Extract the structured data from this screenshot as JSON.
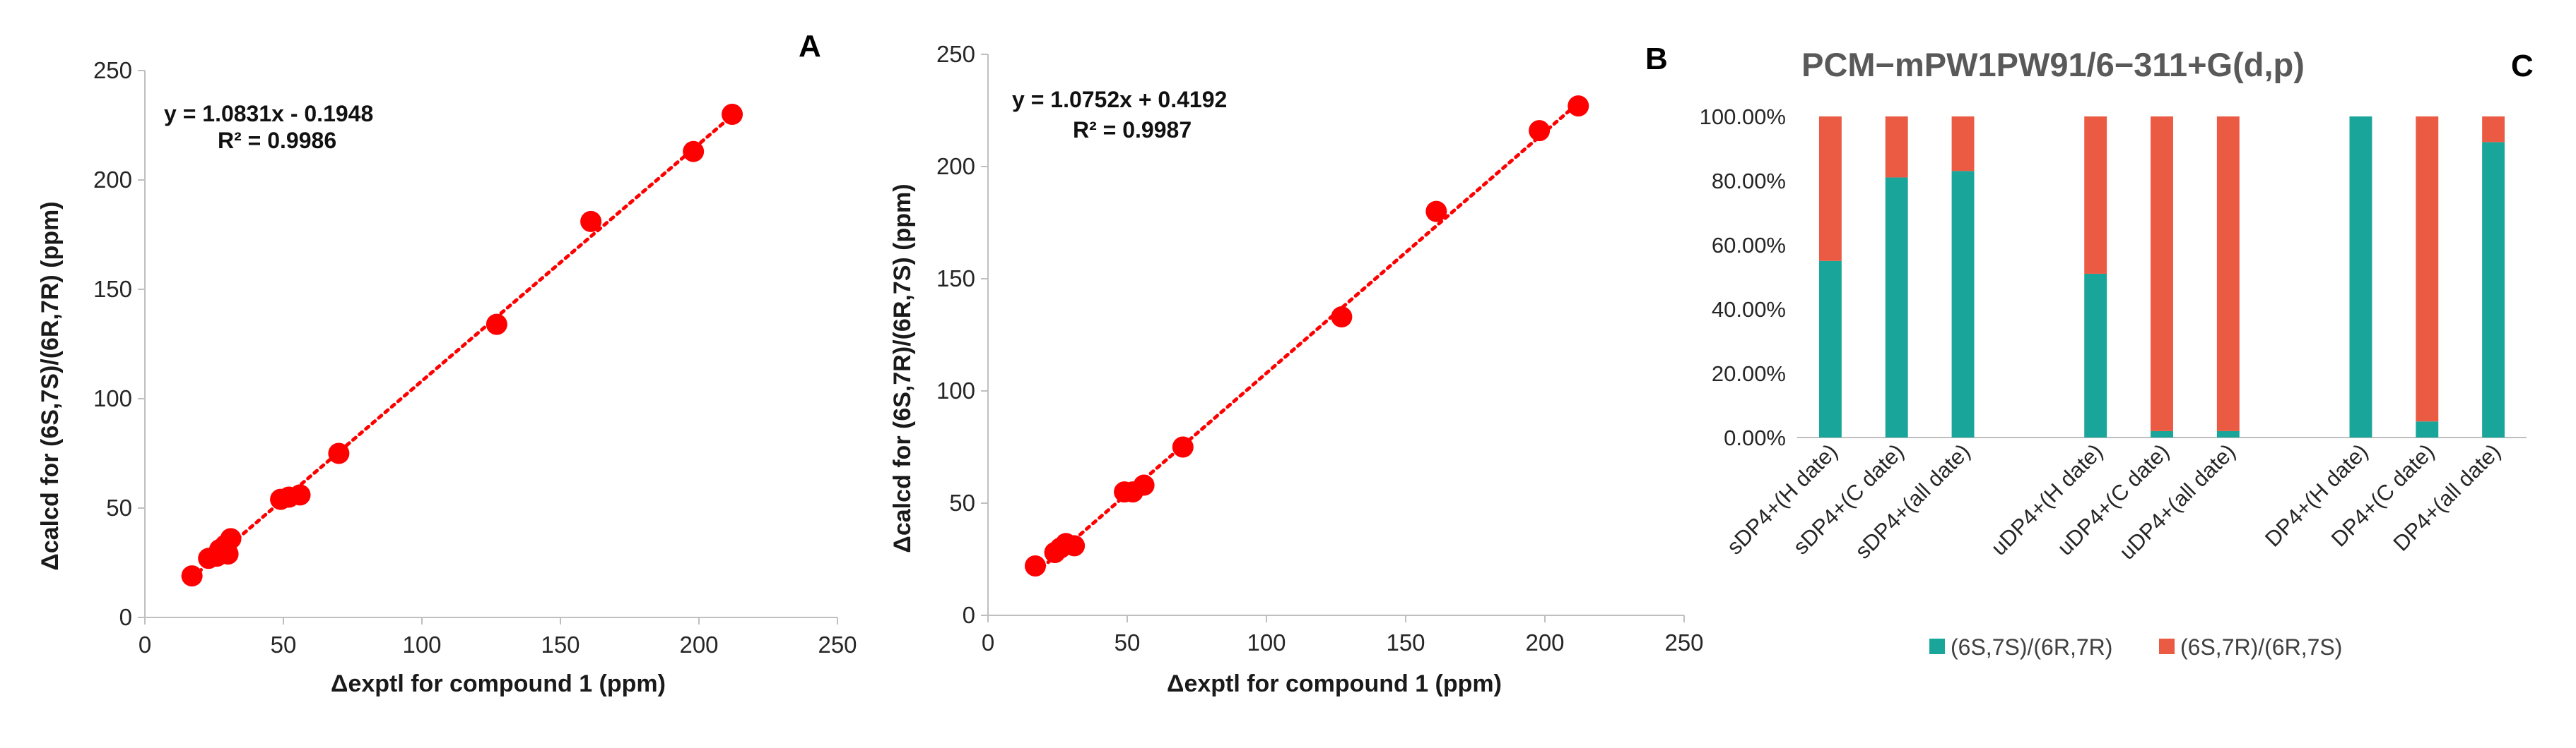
{
  "panels": {
    "A": {
      "letter": "A",
      "equation": "y = 1.0831x - 0.1948",
      "r2": "R² = 0.9986",
      "xlabel": "Δexptl for compound 1 (ppm)",
      "ylabel": "Δcalcd for (6S,7S)/(6R,7R) (ppm)"
    },
    "B": {
      "letter": "B",
      "equation": "y = 1.0752x + 0.4192",
      "r2": "R² = 0.9987",
      "xlabel": "Δexptl for compound 1 (ppm)",
      "ylabel": "Δcalcd for (6S,7R)/(6R,7S)  (ppm)"
    },
    "C": {
      "letter": "C",
      "title": "PCM−mPW1PW91/6−311+G(d,p)",
      "legend": [
        "(6S,7S)/(6R,7R)",
        "(6S,7R)/(6R,7S)"
      ]
    }
  },
  "colors": {
    "scatter": "#ff0000",
    "teal": "#1aa59a",
    "orange": "#eb5b44",
    "axis": "#bfbfbf"
  },
  "chart_data": [
    {
      "type": "scatter",
      "title": "",
      "xlabel": "Δexptl for compound 1 (ppm)",
      "ylabel": "Δcalcd for (6S,7S)/(6R,7R) (ppm)",
      "xlim": [
        0,
        250
      ],
      "ylim": [
        0,
        250
      ],
      "xticks": [
        "0",
        "50",
        "100",
        "150",
        "200",
        "250"
      ],
      "yticks": [
        "0",
        "50",
        "100",
        "150",
        "200",
        "250"
      ],
      "trendline": {
        "slope": 1.0831,
        "intercept": -0.1948,
        "style": "dotted",
        "x_range": [
          17,
          212
        ]
      },
      "points": [
        {
          "x": 17,
          "y": 19
        },
        {
          "x": 23,
          "y": 27
        },
        {
          "x": 26,
          "y": 28
        },
        {
          "x": 27,
          "y": 31
        },
        {
          "x": 29,
          "y": 33
        },
        {
          "x": 30,
          "y": 29
        },
        {
          "x": 31,
          "y": 36
        },
        {
          "x": 49,
          "y": 54
        },
        {
          "x": 52,
          "y": 55
        },
        {
          "x": 56,
          "y": 56
        },
        {
          "x": 70,
          "y": 75
        },
        {
          "x": 127,
          "y": 134
        },
        {
          "x": 161,
          "y": 181
        },
        {
          "x": 198,
          "y": 213
        },
        {
          "x": 212,
          "y": 230
        }
      ]
    },
    {
      "type": "scatter",
      "title": "",
      "xlabel": "Δexptl for compound 1 (ppm)",
      "ylabel": "Δcalcd for (6S,7R)/(6R,7S)  (ppm)",
      "xlim": [
        0,
        250
      ],
      "ylim": [
        0,
        250
      ],
      "xticks": [
        "0",
        "50",
        "100",
        "150",
        "200",
        "250"
      ],
      "yticks": [
        "0",
        "50",
        "100",
        "150",
        "200",
        "250"
      ],
      "trendline": {
        "slope": 1.0752,
        "intercept": 0.4192,
        "style": "dotted",
        "x_range": [
          17,
          212
        ]
      },
      "points": [
        {
          "x": 17,
          "y": 22
        },
        {
          "x": 24,
          "y": 28
        },
        {
          "x": 26,
          "y": 30
        },
        {
          "x": 28,
          "y": 32
        },
        {
          "x": 31,
          "y": 31
        },
        {
          "x": 49,
          "y": 55
        },
        {
          "x": 52,
          "y": 55
        },
        {
          "x": 56,
          "y": 58
        },
        {
          "x": 70,
          "y": 75
        },
        {
          "x": 127,
          "y": 133
        },
        {
          "x": 161,
          "y": 180
        },
        {
          "x": 198,
          "y": 216
        },
        {
          "x": 212,
          "y": 227
        }
      ]
    },
    {
      "type": "bar",
      "stacked": true,
      "title": "PCM−mPW1PW91/6−311+G(d,p)",
      "ylim": [
        0,
        100
      ],
      "yticks": [
        "0.00%",
        "20.00%",
        "40.00%",
        "60.00%",
        "80.00%",
        "100.00%"
      ],
      "categories": [
        "sDP4+(H date)",
        "sDP4+(C date)",
        "sDP4+(all date)",
        "",
        "uDP4+(H date)",
        "uDP4+(C date)",
        "uDP4+(all date)",
        "",
        "DP4+(H date)",
        "DP4+(C date)",
        "DP4+(all date)"
      ],
      "series": [
        {
          "name": "(6S,7S)/(6R,7R)",
          "values": [
            55,
            81,
            83,
            null,
            51,
            2,
            2,
            null,
            100,
            5,
            92
          ]
        },
        {
          "name": "(6S,7R)/(6R,7S)",
          "values": [
            45,
            19,
            17,
            null,
            49,
            98,
            98,
            null,
            0,
            95,
            8
          ]
        }
      ],
      "legend_position": "bottom"
    }
  ]
}
